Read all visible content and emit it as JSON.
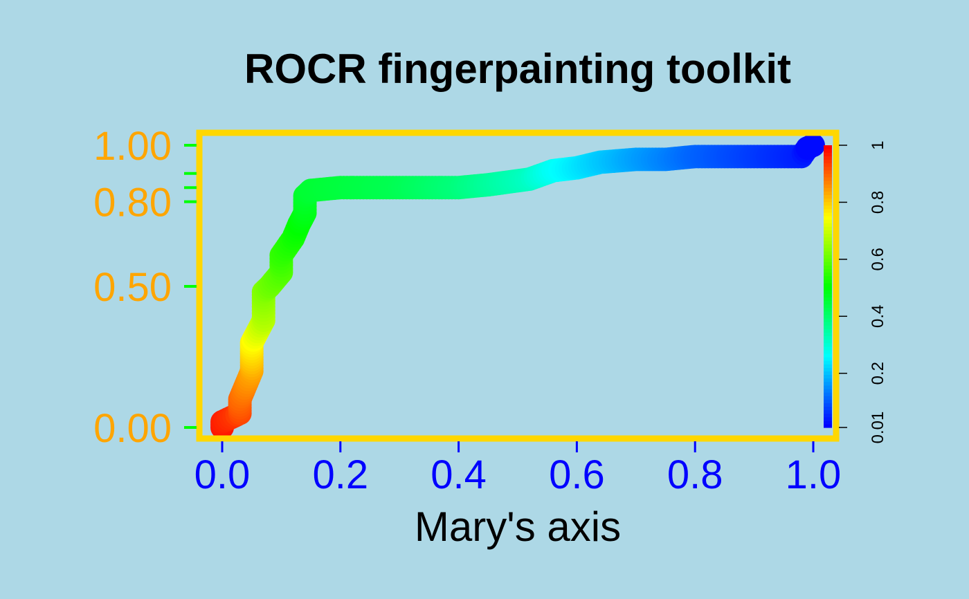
{
  "chart_data": {
    "type": "line",
    "title": "ROCR fingerpainting toolkit",
    "xlabel": "Mary's axis",
    "ylabel": "",
    "xlim": [
      0,
      1
    ],
    "ylim": [
      0,
      1
    ],
    "x_ticks": [
      "0.0",
      "0.2",
      "0.4",
      "0.6",
      "0.8",
      "1.0"
    ],
    "y_ticks": [
      {
        "value": 0,
        "label": "0.00"
      },
      {
        "value": 0.5,
        "label": "0.50"
      },
      {
        "value": 0.8,
        "label": "0.80"
      },
      {
        "value": 1,
        "label": "1.00"
      }
    ],
    "y_extra_ticks": [
      0.85,
      0.9
    ],
    "colorbar": {
      "ticks": [
        {
          "value": 0.01,
          "label": "0.01"
        },
        {
          "value": 0.2,
          "label": "0.2"
        },
        {
          "value": 0.4,
          "label": "0.4"
        },
        {
          "value": 0.6,
          "label": "0.6"
        },
        {
          "value": 0.8,
          "label": "0.8"
        },
        {
          "value": 1,
          "label": "1"
        }
      ],
      "range": [
        0.01,
        1
      ]
    },
    "series": [
      {
        "points": [
          {
            "x": 0.0,
            "y": 0.0,
            "c": 0.98
          },
          {
            "x": 0.0,
            "y": 0.02,
            "c": 0.97
          },
          {
            "x": 0.01,
            "y": 0.03,
            "c": 0.96
          },
          {
            "x": 0.02,
            "y": 0.04,
            "c": 0.95
          },
          {
            "x": 0.03,
            "y": 0.05,
            "c": 0.93
          },
          {
            "x": 0.03,
            "y": 0.1,
            "c": 0.9
          },
          {
            "x": 0.04,
            "y": 0.15,
            "c": 0.87
          },
          {
            "x": 0.05,
            "y": 0.2,
            "c": 0.84
          },
          {
            "x": 0.05,
            "y": 0.25,
            "c": 0.8
          },
          {
            "x": 0.05,
            "y": 0.3,
            "c": 0.76
          },
          {
            "x": 0.06,
            "y": 0.34,
            "c": 0.72
          },
          {
            "x": 0.07,
            "y": 0.38,
            "c": 0.68
          },
          {
            "x": 0.07,
            "y": 0.44,
            "c": 0.65
          },
          {
            "x": 0.07,
            "y": 0.48,
            "c": 0.63
          },
          {
            "x": 0.08,
            "y": 0.5,
            "c": 0.61
          },
          {
            "x": 0.1,
            "y": 0.55,
            "c": 0.58
          },
          {
            "x": 0.1,
            "y": 0.61,
            "c": 0.55
          },
          {
            "x": 0.12,
            "y": 0.67,
            "c": 0.52
          },
          {
            "x": 0.13,
            "y": 0.72,
            "c": 0.5
          },
          {
            "x": 0.14,
            "y": 0.76,
            "c": 0.48
          },
          {
            "x": 0.14,
            "y": 0.82,
            "c": 0.46
          },
          {
            "x": 0.15,
            "y": 0.84,
            "c": 0.45
          },
          {
            "x": 0.2,
            "y": 0.85,
            "c": 0.44
          },
          {
            "x": 0.3,
            "y": 0.85,
            "c": 0.42
          },
          {
            "x": 0.4,
            "y": 0.85,
            "c": 0.38
          },
          {
            "x": 0.45,
            "y": 0.86,
            "c": 0.35
          },
          {
            "x": 0.52,
            "y": 0.88,
            "c": 0.31
          },
          {
            "x": 0.56,
            "y": 0.91,
            "c": 0.26
          },
          {
            "x": 0.6,
            "y": 0.92,
            "c": 0.23
          },
          {
            "x": 0.64,
            "y": 0.94,
            "c": 0.2
          },
          {
            "x": 0.7,
            "y": 0.95,
            "c": 0.16
          },
          {
            "x": 0.75,
            "y": 0.95,
            "c": 0.13
          },
          {
            "x": 0.8,
            "y": 0.96,
            "c": 0.1
          },
          {
            "x": 0.9,
            "y": 0.96,
            "c": 0.06
          },
          {
            "x": 0.98,
            "y": 0.96,
            "c": 0.03
          },
          {
            "x": 0.99,
            "y": 0.99,
            "c": 0.01
          },
          {
            "x": 1.0,
            "y": 1.0,
            "c": 0.01
          }
        ]
      }
    ],
    "colors": {
      "background": "#add8e6",
      "box": "#ffd700",
      "x_tick_text": "#0000ff",
      "y_tick_text": "#ffa500",
      "y_tick_marks": "#00ff00",
      "title": "#000000"
    },
    "grid": false,
    "legend": "none"
  }
}
